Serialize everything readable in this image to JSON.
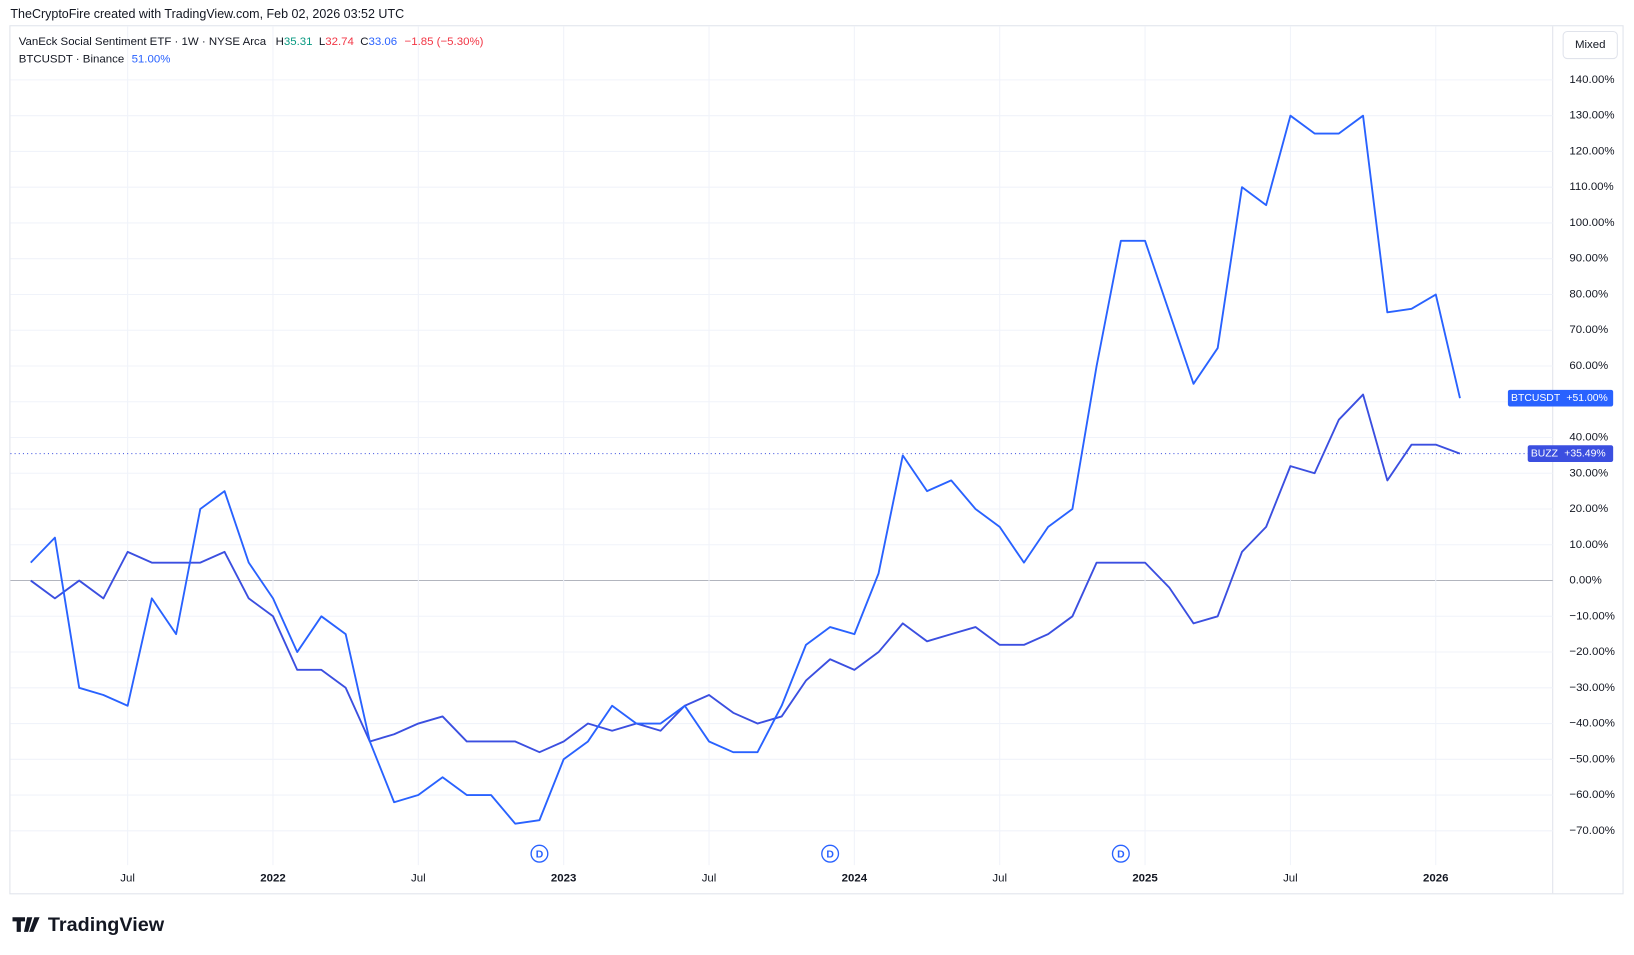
{
  "header": {
    "credit": "TheCryptoFire created with TradingView.com, Feb 02, 2026 03:52 UTC",
    "mode_button": "Mixed",
    "brand": "TradingView"
  },
  "chart_data": {
    "type": "line",
    "x": [
      "2021-03",
      "2021-04",
      "2021-05",
      "2021-06",
      "2021-07",
      "2021-08",
      "2021-09",
      "2021-10",
      "2021-11",
      "2021-12",
      "2022-01",
      "2022-02",
      "2022-03",
      "2022-04",
      "2022-05",
      "2022-06",
      "2022-07",
      "2022-08",
      "2022-09",
      "2022-10",
      "2022-11",
      "2022-12",
      "2023-01",
      "2023-02",
      "2023-03",
      "2023-04",
      "2023-05",
      "2023-06",
      "2023-07",
      "2023-08",
      "2023-09",
      "2023-10",
      "2023-11",
      "2023-12",
      "2024-01",
      "2024-02",
      "2024-03",
      "2024-04",
      "2024-05",
      "2024-06",
      "2024-07",
      "2024-08",
      "2024-09",
      "2024-10",
      "2024-11",
      "2024-12",
      "2025-01",
      "2025-02",
      "2025-03",
      "2025-04",
      "2025-05",
      "2025-06",
      "2025-07",
      "2025-08",
      "2025-09",
      "2025-10",
      "2025-11",
      "2025-12",
      "2026-01",
      "2026-02"
    ],
    "series": [
      {
        "name": "VanEck Social Sentiment ETF · 1W · NYSE Arca",
        "tag": "BUZZ",
        "color": "#3b4fe0",
        "ohlc": [
          {
            "label": "H",
            "value": "35.31"
          },
          {
            "label": "L",
            "value": "32.74"
          },
          {
            "label": "C",
            "value": "33.06"
          }
        ],
        "change": "−1.85 (−5.30%)",
        "values": [
          0,
          -5,
          0,
          -5,
          8,
          5,
          5,
          5,
          8,
          -5,
          -10,
          -25,
          -25,
          -30,
          -45,
          -43,
          -40,
          -38,
          -45,
          -45,
          -45,
          -48,
          -45,
          -40,
          -42,
          -40,
          -42,
          -35,
          -32,
          -37,
          -40,
          -38,
          -28,
          -22,
          -25,
          -20,
          -12,
          -17,
          -15,
          -13,
          -18,
          -18,
          -15,
          -10,
          5,
          5,
          5,
          -2,
          -12,
          -10,
          8,
          15,
          32,
          30,
          45,
          52,
          28,
          38,
          38,
          35.49
        ],
        "value_labels": [
          null,
          null,
          null,
          null,
          null,
          null,
          null,
          null,
          null,
          null,
          null,
          null,
          null,
          null,
          null,
          null,
          null,
          null,
          null,
          null,
          null,
          null,
          null,
          null,
          null,
          null,
          null,
          null,
          null,
          null,
          null,
          null,
          null,
          null,
          null,
          null,
          null,
          null,
          null,
          null,
          null,
          null,
          null,
          null,
          null,
          null,
          null,
          null,
          null,
          null,
          null,
          null,
          null,
          null,
          null,
          null,
          null,
          null,
          null,
          "+35.49%"
        ]
      },
      {
        "name": "BTCUSDT · Binance",
        "tag": "BTCUSDT",
        "color": "#2962ff",
        "legend_value": "51.00%",
        "values": [
          5,
          12,
          -30,
          -32,
          -35,
          -5,
          -15,
          20,
          25,
          5,
          -5,
          -20,
          -10,
          -15,
          -45,
          -62,
          -60,
          -55,
          -60,
          -60,
          -68,
          -67,
          -50,
          -45,
          -35,
          -40,
          -40,
          -35,
          -45,
          -48,
          -48,
          -35,
          -18,
          -13,
          -15,
          2,
          35,
          25,
          28,
          20,
          15,
          5,
          15,
          20,
          60,
          95,
          95,
          75,
          55,
          65,
          110,
          105,
          130,
          125,
          125,
          130,
          75,
          76,
          80,
          51
        ],
        "value_labels": [
          null,
          null,
          null,
          null,
          null,
          null,
          null,
          null,
          null,
          null,
          null,
          null,
          null,
          null,
          null,
          null,
          null,
          null,
          null,
          null,
          null,
          null,
          null,
          null,
          null,
          null,
          null,
          null,
          null,
          null,
          null,
          null,
          null,
          null,
          null,
          null,
          null,
          null,
          null,
          null,
          null,
          null,
          null,
          null,
          null,
          null,
          null,
          null,
          null,
          null,
          null,
          null,
          null,
          null,
          null,
          null,
          null,
          null,
          null,
          "+51.00%"
        ]
      }
    ],
    "dividends": [
      "2022-12",
      "2023-12",
      "2024-12"
    ],
    "dividend_label": "D",
    "ylim": [
      -79.6,
      155
    ],
    "yticks": [
      {
        "value": -70,
        "label": "−70.00%"
      },
      {
        "value": -60,
        "label": "−60.00%"
      },
      {
        "value": -50,
        "label": "−50.00%"
      },
      {
        "value": -40,
        "label": "−40.00%"
      },
      {
        "value": -30,
        "label": "−30.00%"
      },
      {
        "value": -20,
        "label": "−20.00%"
      },
      {
        "value": -10,
        "label": "−10.00%"
      },
      {
        "value": 0,
        "label": "0.00%"
      },
      {
        "value": 10,
        "label": "10.00%"
      },
      {
        "value": 20,
        "label": "20.00%"
      },
      {
        "value": 30,
        "label": "30.00%"
      },
      {
        "value": 40,
        "label": "40.00%"
      },
      {
        "value": 50,
        "label": "50.00%"
      },
      {
        "value": 60,
        "label": "60.00%"
      },
      {
        "value": 70,
        "label": "70.00%"
      },
      {
        "value": 80,
        "label": "80.00%"
      },
      {
        "value": 90,
        "label": "90.00%"
      },
      {
        "value": 100,
        "label": "100.00%"
      },
      {
        "value": 110,
        "label": "110.00%"
      },
      {
        "value": 120,
        "label": "120.00%"
      },
      {
        "value": 130,
        "label": "130.00%"
      },
      {
        "value": 140,
        "label": "140.00%"
      }
    ],
    "xticks": [
      {
        "value": "2021-07",
        "label": "Jul"
      },
      {
        "value": "2022-01",
        "label": "2022"
      },
      {
        "value": "2022-07",
        "label": "Jul"
      },
      {
        "value": "2023-01",
        "label": "2023"
      },
      {
        "value": "2023-07",
        "label": "Jul"
      },
      {
        "value": "2024-01",
        "label": "2024"
      },
      {
        "value": "2024-07",
        "label": "Jul"
      },
      {
        "value": "2025-01",
        "label": "2025"
      },
      {
        "value": "2025-07",
        "label": "Jul"
      },
      {
        "value": "2026-01",
        "label": "2026"
      }
    ],
    "grid": true
  }
}
